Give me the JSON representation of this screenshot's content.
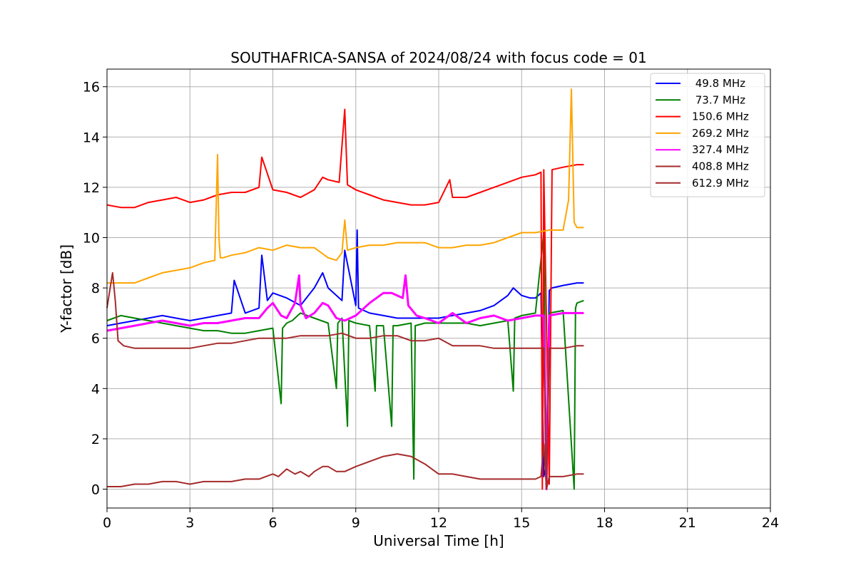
{
  "chart_data": {
    "type": "line",
    "title": "SOUTHAFRICA-SANSA of 2024/08/24 with focus code = 01",
    "xlabel": "Universal Time [h]",
    "ylabel": "Y-factor [dB]",
    "xlim": [
      0,
      24
    ],
    "ylim": [
      -0.75,
      16.7
    ],
    "x_ticks": [
      0,
      3,
      6,
      9,
      12,
      15,
      18,
      21,
      24
    ],
    "x_tick_labels": [
      "0",
      "3",
      "6",
      "9",
      "12",
      "15",
      "18",
      "21",
      "24"
    ],
    "y_ticks": [
      0,
      2,
      4,
      6,
      8,
      10,
      12,
      14,
      16
    ],
    "y_tick_labels": [
      "0",
      "2",
      "4",
      "6",
      "8",
      "10",
      "12",
      "14",
      "16"
    ],
    "grid": true,
    "legend_position": "top-right",
    "series": [
      {
        "name": " 49.8 MHz",
        "color": "#0000ff",
        "x": [
          0.0,
          0.5,
          1.0,
          1.5,
          2.0,
          2.5,
          3.0,
          3.5,
          4.0,
          4.5,
          4.6,
          5.0,
          5.5,
          5.6,
          5.8,
          6.0,
          6.5,
          7.0,
          7.5,
          7.8,
          8.0,
          8.5,
          8.6,
          9.0,
          9.05,
          9.1,
          9.5,
          10.0,
          10.5,
          11.0,
          11.5,
          12.0,
          12.5,
          13.0,
          13.5,
          14.0,
          14.5,
          14.7,
          15.0,
          15.3,
          15.5,
          15.7,
          15.8,
          15.9,
          16.0,
          16.1,
          16.5,
          17.0,
          17.25
        ],
        "y": [
          6.5,
          6.6,
          6.7,
          6.8,
          6.9,
          6.8,
          6.7,
          6.8,
          6.9,
          7.0,
          8.3,
          7.0,
          7.2,
          9.3,
          7.5,
          7.8,
          7.6,
          7.3,
          8.0,
          8.6,
          8.0,
          7.5,
          9.5,
          7.3,
          10.3,
          7.2,
          7.0,
          6.9,
          6.8,
          6.8,
          6.8,
          6.8,
          6.9,
          7.0,
          7.1,
          7.3,
          7.7,
          8.0,
          7.7,
          7.6,
          7.6,
          7.8,
          0.5,
          1.0,
          7.9,
          8.0,
          8.1,
          8.2,
          8.2
        ]
      },
      {
        "name": " 73.7 MHz",
        "color": "#008000",
        "x": [
          0.0,
          0.5,
          1.0,
          1.5,
          2.0,
          2.5,
          3.0,
          3.5,
          4.0,
          4.5,
          5.0,
          5.5,
          6.0,
          6.3,
          6.35,
          6.5,
          6.7,
          7.0,
          7.5,
          8.0,
          8.3,
          8.35,
          8.5,
          8.7,
          8.75,
          9.0,
          9.5,
          9.7,
          9.75,
          10.0,
          10.3,
          10.35,
          10.5,
          11.0,
          11.1,
          11.15,
          11.5,
          12.0,
          12.5,
          13.0,
          13.5,
          14.0,
          14.5,
          14.7,
          14.75,
          15.0,
          15.5,
          15.8,
          15.9,
          16.0,
          16.5,
          16.9,
          16.95,
          17.0,
          17.25
        ],
        "y": [
          6.7,
          6.9,
          6.8,
          6.7,
          6.6,
          6.5,
          6.4,
          6.3,
          6.3,
          6.2,
          6.2,
          6.3,
          6.4,
          3.4,
          6.4,
          6.6,
          6.7,
          7.0,
          6.8,
          6.6,
          4.0,
          6.6,
          6.8,
          2.5,
          6.7,
          6.6,
          6.5,
          3.9,
          6.5,
          6.5,
          2.5,
          6.5,
          6.5,
          6.6,
          0.4,
          6.5,
          6.6,
          6.6,
          6.6,
          6.6,
          6.5,
          6.6,
          6.7,
          3.9,
          6.8,
          6.9,
          7.0,
          10.2,
          0.1,
          7.0,
          7.1,
          0.0,
          7.2,
          7.4,
          7.5
        ]
      },
      {
        "name": "150.6 MHz",
        "color": "#ff0000",
        "x": [
          0.0,
          0.5,
          1.0,
          1.5,
          2.0,
          2.5,
          3.0,
          3.5,
          4.0,
          4.5,
          5.0,
          5.5,
          5.6,
          6.0,
          6.5,
          7.0,
          7.5,
          7.8,
          8.0,
          8.4,
          8.6,
          8.7,
          9.0,
          9.5,
          10.0,
          10.5,
          11.0,
          11.5,
          12.0,
          12.4,
          12.5,
          13.0,
          13.5,
          14.0,
          14.5,
          15.0,
          15.5,
          15.7,
          15.75,
          15.8,
          16.0,
          16.1,
          16.5,
          17.0,
          17.25
        ],
        "y": [
          11.3,
          11.2,
          11.2,
          11.4,
          11.5,
          11.6,
          11.4,
          11.5,
          11.7,
          11.8,
          11.8,
          12.0,
          13.2,
          11.9,
          11.8,
          11.6,
          11.9,
          12.4,
          12.3,
          12.2,
          15.1,
          12.1,
          11.9,
          11.7,
          11.5,
          11.4,
          11.3,
          11.3,
          11.4,
          12.3,
          11.6,
          11.6,
          11.8,
          12.0,
          12.2,
          12.4,
          12.5,
          12.6,
          0.0,
          12.7,
          0.2,
          12.7,
          12.8,
          12.9,
          12.9
        ]
      },
      {
        "name": "269.2 MHz",
        "color": "#ffa500",
        "x": [
          0.0,
          0.5,
          1.0,
          1.5,
          2.0,
          2.5,
          3.0,
          3.5,
          3.9,
          4.0,
          4.05,
          4.1,
          4.2,
          4.5,
          5.0,
          5.5,
          6.0,
          6.5,
          7.0,
          7.5,
          8.0,
          8.3,
          8.5,
          8.6,
          8.7,
          9.0,
          9.5,
          10.0,
          10.5,
          11.0,
          11.5,
          12.0,
          12.5,
          13.0,
          13.5,
          14.0,
          14.5,
          15.0,
          15.5,
          16.0,
          16.5,
          16.7,
          16.8,
          16.9,
          17.0,
          17.25
        ],
        "y": [
          8.2,
          8.2,
          8.2,
          8.4,
          8.6,
          8.7,
          8.8,
          9.0,
          9.1,
          13.3,
          10.0,
          9.2,
          9.2,
          9.3,
          9.4,
          9.6,
          9.5,
          9.7,
          9.6,
          9.6,
          9.2,
          9.1,
          9.4,
          10.7,
          9.5,
          9.6,
          9.7,
          9.7,
          9.8,
          9.8,
          9.8,
          9.6,
          9.6,
          9.7,
          9.7,
          9.8,
          10.0,
          10.2,
          10.2,
          10.3,
          10.3,
          11.5,
          15.9,
          10.6,
          10.4,
          10.4
        ]
      },
      {
        "name": "327.4 MHz",
        "color": "#ff00ff",
        "x": [
          0.0,
          0.5,
          1.0,
          1.5,
          2.0,
          2.5,
          3.0,
          3.5,
          4.0,
          4.5,
          5.0,
          5.5,
          5.8,
          6.0,
          6.3,
          6.5,
          6.8,
          6.95,
          7.0,
          7.2,
          7.5,
          7.8,
          8.0,
          8.3,
          8.6,
          9.0,
          9.5,
          10.0,
          10.3,
          10.7,
          10.8,
          10.9,
          11.2,
          11.5,
          12.0,
          12.5,
          13.0,
          13.5,
          14.0,
          14.5,
          15.0,
          15.5,
          15.8,
          15.9,
          16.0,
          16.5,
          17.0,
          17.25
        ],
        "y": [
          6.3,
          6.4,
          6.5,
          6.6,
          6.7,
          6.6,
          6.5,
          6.6,
          6.6,
          6.7,
          6.8,
          6.8,
          7.2,
          7.4,
          6.9,
          6.8,
          7.4,
          8.5,
          7.3,
          6.8,
          7.0,
          7.4,
          7.3,
          6.8,
          6.7,
          6.9,
          7.4,
          7.8,
          7.8,
          7.6,
          8.5,
          7.3,
          6.9,
          6.8,
          6.6,
          7.0,
          6.6,
          6.8,
          6.9,
          6.7,
          6.8,
          6.9,
          6.9,
          0.0,
          6.9,
          7.0,
          7.0,
          7.0
        ]
      },
      {
        "name": "408.8 MHz",
        "color": "#a52a2a",
        "x": [
          0.0,
          0.2,
          0.3,
          0.4,
          0.6,
          1.0,
          1.5,
          2.0,
          2.5,
          3.0,
          3.5,
          4.0,
          4.5,
          5.0,
          5.5,
          6.0,
          6.5,
          7.0,
          7.5,
          8.0,
          8.5,
          9.0,
          9.5,
          10.0,
          10.5,
          11.0,
          11.5,
          12.0,
          12.5,
          13.0,
          13.5,
          14.0,
          14.5,
          15.0,
          15.5,
          15.8,
          15.9,
          16.0,
          16.5,
          17.0,
          17.25
        ],
        "y": [
          7.2,
          8.6,
          7.5,
          5.9,
          5.7,
          5.6,
          5.6,
          5.6,
          5.6,
          5.6,
          5.7,
          5.8,
          5.8,
          5.9,
          6.0,
          6.0,
          6.0,
          6.1,
          6.1,
          6.1,
          6.2,
          6.0,
          6.0,
          6.1,
          6.1,
          5.9,
          5.9,
          6.0,
          5.7,
          5.7,
          5.7,
          5.6,
          5.6,
          5.6,
          5.6,
          5.6,
          0.1,
          5.6,
          5.6,
          5.7,
          5.7
        ]
      },
      {
        "name": "612.9 MHz",
        "color": "#a52a2a",
        "x": [
          0.0,
          0.5,
          1.0,
          1.5,
          2.0,
          2.5,
          3.0,
          3.5,
          4.0,
          4.5,
          5.0,
          5.5,
          6.0,
          6.2,
          6.5,
          6.8,
          7.0,
          7.3,
          7.5,
          7.8,
          8.0,
          8.3,
          8.6,
          9.0,
          9.5,
          10.0,
          10.5,
          11.0,
          11.5,
          12.0,
          12.5,
          13.0,
          13.5,
          14.0,
          14.5,
          15.0,
          15.5,
          15.7,
          15.8,
          15.9,
          16.0,
          16.5,
          17.0,
          17.25
        ],
        "y": [
          0.1,
          0.1,
          0.2,
          0.2,
          0.3,
          0.3,
          0.2,
          0.3,
          0.3,
          0.3,
          0.4,
          0.4,
          0.6,
          0.5,
          0.8,
          0.6,
          0.7,
          0.5,
          0.7,
          0.9,
          0.9,
          0.7,
          0.7,
          0.9,
          1.1,
          1.3,
          1.4,
          1.3,
          1.0,
          0.6,
          0.6,
          0.5,
          0.4,
          0.4,
          0.4,
          0.4,
          0.4,
          0.5,
          1.8,
          0.0,
          0.5,
          0.5,
          0.6,
          0.6
        ]
      }
    ]
  }
}
